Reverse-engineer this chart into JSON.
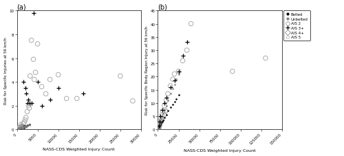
{
  "panel_a": {
    "title": "(a)",
    "xlabel": "NASS-CDS Weighted Injury Count",
    "ylabel": "Risk for Specific Injuries at 56 km/h",
    "xlim": [
      0,
      30000
    ],
    "ylim": [
      0,
      10
    ],
    "xticks": [
      0,
      5000,
      10000,
      15000,
      20000,
      25000,
      30000
    ],
    "xtick_labels": [
      "0",
      "5000",
      "10000",
      "15000",
      "20000",
      "25000",
      "30000"
    ],
    "yticks": [
      0,
      2,
      4,
      6,
      8,
      10
    ],
    "belted_dots": [
      [
        300,
        0.05
      ],
      [
        400,
        0.08
      ],
      [
        500,
        0.1
      ],
      [
        600,
        0.12
      ],
      [
        700,
        0.1
      ],
      [
        800,
        0.15
      ],
      [
        900,
        0.12
      ],
      [
        1000,
        0.18
      ],
      [
        1100,
        0.2
      ],
      [
        1200,
        0.22
      ],
      [
        1300,
        0.15
      ],
      [
        1400,
        0.2
      ],
      [
        1500,
        0.25
      ],
      [
        1600,
        0.2
      ],
      [
        1700,
        0.15
      ],
      [
        1800,
        0.3
      ],
      [
        2000,
        0.3
      ],
      [
        2200,
        0.25
      ],
      [
        2500,
        0.35
      ],
      [
        3000,
        0.4
      ]
    ],
    "unbelted_dots": [
      [
        200,
        0.05
      ],
      [
        300,
        0.08
      ],
      [
        400,
        0.1
      ],
      [
        500,
        0.12
      ],
      [
        600,
        0.1
      ],
      [
        700,
        0.12
      ],
      [
        800,
        0.18
      ],
      [
        900,
        0.15
      ],
      [
        1000,
        0.2
      ],
      [
        1100,
        0.18
      ],
      [
        1200,
        0.2
      ],
      [
        1300,
        0.15
      ],
      [
        1400,
        0.25
      ],
      [
        1500,
        0.2
      ],
      [
        1600,
        0.18
      ],
      [
        1800,
        0.25
      ],
      [
        2000,
        0.28
      ],
      [
        2200,
        0.2
      ],
      [
        2500,
        0.3
      ],
      [
        3000,
        0.35
      ]
    ],
    "ais2_circles": [
      [
        1000,
        0.4
      ],
      [
        1500,
        0.5
      ],
      [
        1800,
        0.6
      ],
      [
        2000,
        0.8
      ],
      [
        2200,
        1.0
      ],
      [
        2500,
        1.5
      ],
      [
        2800,
        2.0
      ],
      [
        3000,
        1.8
      ],
      [
        3200,
        4.5
      ],
      [
        3500,
        7.5
      ],
      [
        4000,
        5.9
      ],
      [
        4200,
        4.2
      ],
      [
        4500,
        4.8
      ],
      [
        5000,
        7.2
      ],
      [
        6000,
        3.6
      ],
      [
        7000,
        3.0
      ],
      [
        8000,
        4.2
      ],
      [
        10000,
        4.6
      ],
      [
        12000,
        2.6
      ],
      [
        14500,
        2.6
      ],
      [
        25000,
        4.5
      ],
      [
        28000,
        2.4
      ]
    ],
    "ais3_plus": [
      [
        1500,
        4.0
      ],
      [
        2000,
        3.5
      ],
      [
        2200,
        3.0
      ],
      [
        2500,
        2.2
      ],
      [
        2800,
        2.5
      ],
      [
        3000,
        2.2
      ],
      [
        3500,
        2.2
      ],
      [
        4000,
        9.8
      ],
      [
        5000,
        4.0
      ],
      [
        6000,
        2.0
      ],
      [
        8000,
        2.5
      ],
      [
        10000,
        3.5
      ],
      [
        16000,
        3.0
      ]
    ],
    "ais4_diamonds": [
      [
        200,
        0.05
      ],
      [
        300,
        0.08
      ],
      [
        400,
        0.1
      ],
      [
        500,
        0.12
      ],
      [
        600,
        0.15
      ],
      [
        800,
        0.18
      ],
      [
        1000,
        0.22
      ],
      [
        1200,
        0.25
      ],
      [
        1500,
        0.2
      ]
    ],
    "ais5_circles": [
      [
        200,
        0.1
      ],
      [
        250,
        0.15
      ],
      [
        300,
        0.18
      ],
      [
        400,
        0.12
      ],
      [
        500,
        0.1
      ],
      [
        600,
        0.2
      ],
      [
        700,
        0.15
      ],
      [
        800,
        0.12
      ],
      [
        1000,
        0.18
      ]
    ]
  },
  "panel_b": {
    "title": "(b)",
    "xlabel": "NASS-CDS Weighted Injury Count",
    "ylabel": "Risk for Specific Body Region Injury at 56 km/h",
    "xlim": [
      0,
      150000
    ],
    "ylim": [
      0,
      45
    ],
    "xticks": [
      0,
      25000,
      50000,
      75000,
      100000,
      125000,
      150000
    ],
    "xtick_labels": [
      "0",
      "25000",
      "50000",
      "75000",
      "100000",
      "125000",
      "150000"
    ],
    "yticks": [
      0,
      5,
      10,
      15,
      20,
      25,
      30,
      35,
      40,
      45
    ],
    "belted_dots": [
      [
        300,
        0.2
      ],
      [
        500,
        0.3
      ],
      [
        800,
        0.5
      ],
      [
        1000,
        0.8
      ],
      [
        1500,
        1.0
      ],
      [
        2000,
        1.5
      ],
      [
        2500,
        1.8
      ],
      [
        3000,
        2.2
      ],
      [
        4000,
        2.5
      ],
      [
        5000,
        3.0
      ],
      [
        6000,
        3.5
      ],
      [
        8000,
        4.5
      ],
      [
        10000,
        5.5
      ],
      [
        12000,
        7.0
      ],
      [
        15000,
        8.5
      ],
      [
        18000,
        9.5
      ],
      [
        20000,
        10.5
      ],
      [
        22000,
        11.5
      ],
      [
        25000,
        13.0
      ]
    ],
    "unbelted_dots": [
      [
        300,
        0.2
      ],
      [
        500,
        0.4
      ],
      [
        800,
        0.6
      ],
      [
        1000,
        1.0
      ],
      [
        1500,
        1.5
      ],
      [
        2000,
        2.0
      ],
      [
        2500,
        2.5
      ],
      [
        3000,
        3.0
      ],
      [
        4000,
        4.0
      ],
      [
        5000,
        5.0
      ],
      [
        6000,
        6.0
      ],
      [
        8000,
        7.5
      ],
      [
        10000,
        9.0
      ],
      [
        12000,
        11.0
      ],
      [
        15000,
        13.5
      ],
      [
        18000,
        15.5
      ],
      [
        20000,
        17.0
      ],
      [
        22000,
        19.0
      ],
      [
        25000,
        21.0
      ]
    ],
    "ais2_circles": [
      [
        1000,
        0.5
      ],
      [
        2000,
        1.5
      ],
      [
        3000,
        2.5
      ],
      [
        4000,
        4.0
      ],
      [
        5000,
        5.5
      ],
      [
        6000,
        7.0
      ],
      [
        8000,
        9.0
      ],
      [
        10000,
        11.0
      ],
      [
        12000,
        13.5
      ],
      [
        15000,
        16.5
      ],
      [
        18000,
        19.0
      ],
      [
        20000,
        21.0
      ],
      [
        25000,
        22.0
      ],
      [
        30000,
        26.0
      ],
      [
        35000,
        30.0
      ],
      [
        40000,
        40.0
      ],
      [
        90000,
        22.0
      ],
      [
        130000,
        27.0
      ]
    ],
    "ais3_plus": [
      [
        1000,
        1.5
      ],
      [
        2000,
        3.0
      ],
      [
        3000,
        5.0
      ],
      [
        5000,
        7.5
      ],
      [
        8000,
        10.0
      ],
      [
        10000,
        12.0
      ],
      [
        15000,
        16.0
      ],
      [
        20000,
        18.5
      ],
      [
        25000,
        22.0
      ],
      [
        30000,
        28.0
      ],
      [
        35000,
        33.0
      ]
    ],
    "ais4_diamonds": [
      [
        500,
        0.3
      ],
      [
        800,
        0.6
      ],
      [
        1000,
        1.0
      ],
      [
        2000,
        1.8
      ],
      [
        3000,
        2.5
      ],
      [
        5000,
        3.5
      ],
      [
        8000,
        5.5
      ],
      [
        10000,
        7.0
      ]
    ],
    "ais5_circles": [
      [
        300,
        0.2
      ],
      [
        500,
        0.4
      ],
      [
        800,
        0.8
      ],
      [
        1000,
        1.2
      ],
      [
        1500,
        1.8
      ],
      [
        2000,
        2.5
      ],
      [
        3000,
        3.5
      ]
    ]
  },
  "legend_labels": [
    "Belted",
    "Unbelted",
    "AIS 2",
    "AIS 3+",
    "AIS 4+",
    "AIS 5"
  ]
}
